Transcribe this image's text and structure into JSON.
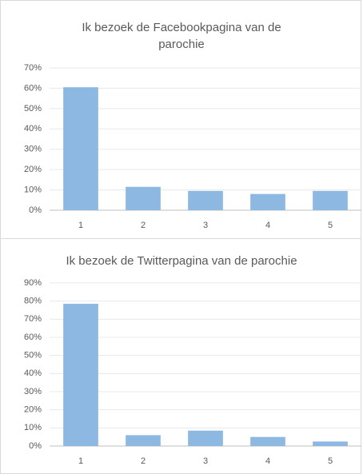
{
  "chart_data": [
    {
      "type": "bar",
      "title": "Ik bezoek de Facebookpagina van de parochie",
      "categories": [
        "1",
        "2",
        "3",
        "4",
        "5"
      ],
      "values": [
        60.5,
        11.5,
        9.5,
        8,
        9.5
      ],
      "color": "#8db8e2",
      "ylim": [
        0,
        70
      ],
      "yticks": [
        {
          "value": 0,
          "label": "0%"
        },
        {
          "value": 10,
          "label": "10%"
        },
        {
          "value": 20,
          "label": "20%"
        },
        {
          "value": 30,
          "label": "30%"
        },
        {
          "value": 40,
          "label": "40%"
        },
        {
          "value": 50,
          "label": "50%"
        },
        {
          "value": 60,
          "label": "60%"
        },
        {
          "value": 70,
          "label": "70%"
        }
      ],
      "grid": true
    },
    {
      "type": "bar",
      "title": "Ik bezoek de Twitterpagina van de parochie",
      "categories": [
        "1",
        "2",
        "3",
        "4",
        "5"
      ],
      "values": [
        78.5,
        6,
        8.5,
        5,
        2.5
      ],
      "color": "#8db8e2",
      "ylim": [
        0,
        90
      ],
      "yticks": [
        {
          "value": 0,
          "label": "0%"
        },
        {
          "value": 10,
          "label": "10%"
        },
        {
          "value": 20,
          "label": "20%"
        },
        {
          "value": 30,
          "label": "30%"
        },
        {
          "value": 40,
          "label": "40%"
        },
        {
          "value": 50,
          "label": "50%"
        },
        {
          "value": 60,
          "label": "60%"
        },
        {
          "value": 70,
          "label": "70%"
        },
        {
          "value": 80,
          "label": "80%"
        },
        {
          "value": 90,
          "label": "90%"
        }
      ],
      "grid": true
    }
  ]
}
